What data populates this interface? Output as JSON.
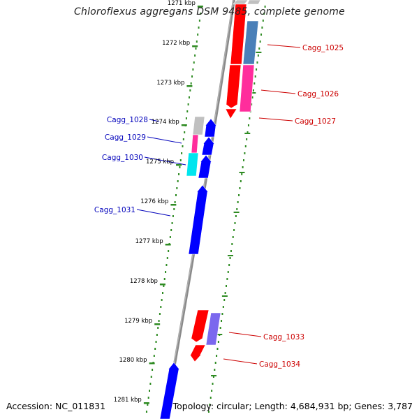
{
  "title": "Chloroflexus aggregans DSM 9485, complete genome",
  "footer": {
    "accession": "Accession: NC_011831",
    "summary": "Topology: circular; Length: 4,684,931 bp; Genes: 3,787"
  },
  "colors": {
    "backbone": "#8a8a8a",
    "tick": "#2e8b22",
    "forward_label": "#cc0000",
    "reverse_label": "#0000bb",
    "feature_red": "#ff0000",
    "feature_blue": "#0000ff",
    "feature_steelblue": "#4a7fb8",
    "feature_pink": "#ff2d9c",
    "feature_cyan": "#00e5ee",
    "feature_grey": "#c0c0c0",
    "feature_slate": "#7b68ee"
  },
  "ruler": {
    "unit": "kbp",
    "ticks": [
      "1271 kbp",
      "1272 kbp",
      "1273 kbp",
      "1274 kbp",
      "1275 kbp",
      "1276 kbp",
      "1277 kbp",
      "1278 kbp",
      "1279 kbp",
      "1280 kbp",
      "1281 kbp"
    ]
  },
  "features": {
    "forward_labels": [
      "Cagg_1025",
      "Cagg_1026",
      "Cagg_1027",
      "Cagg_1033",
      "Cagg_1034"
    ],
    "reverse_labels": [
      "Cagg_1028",
      "Cagg_1029",
      "Cagg_1030",
      "Cagg_1031"
    ]
  }
}
